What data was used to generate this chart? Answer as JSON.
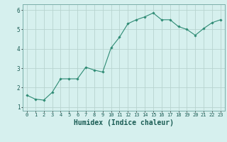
{
  "x": [
    0,
    1,
    2,
    3,
    4,
    5,
    6,
    7,
    8,
    9,
    10,
    11,
    12,
    13,
    14,
    15,
    16,
    17,
    18,
    19,
    20,
    21,
    22,
    23
  ],
  "y": [
    1.6,
    1.4,
    1.35,
    1.75,
    2.45,
    2.45,
    2.45,
    3.05,
    2.9,
    2.8,
    4.05,
    4.6,
    5.3,
    5.5,
    5.65,
    5.85,
    5.5,
    5.5,
    5.15,
    5.0,
    4.7,
    5.05,
    5.35,
    5.5
  ],
  "line_color": "#2e8b74",
  "marker": "D",
  "marker_size": 1.8,
  "line_width": 0.8,
  "bg_color": "#d6f0ee",
  "grid_color": "#b8d4d0",
  "xlabel": "Humidex (Indice chaleur)",
  "xlabel_fontsize": 7,
  "tick_fontsize": 5.5,
  "ylim": [
    0.8,
    6.3
  ],
  "xlim": [
    -0.5,
    23.5
  ],
  "yticks": [
    1,
    2,
    3,
    4,
    5,
    6
  ],
  "xticks": [
    0,
    1,
    2,
    3,
    4,
    5,
    6,
    7,
    8,
    9,
    10,
    11,
    12,
    13,
    14,
    15,
    16,
    17,
    18,
    19,
    20,
    21,
    22,
    23
  ]
}
